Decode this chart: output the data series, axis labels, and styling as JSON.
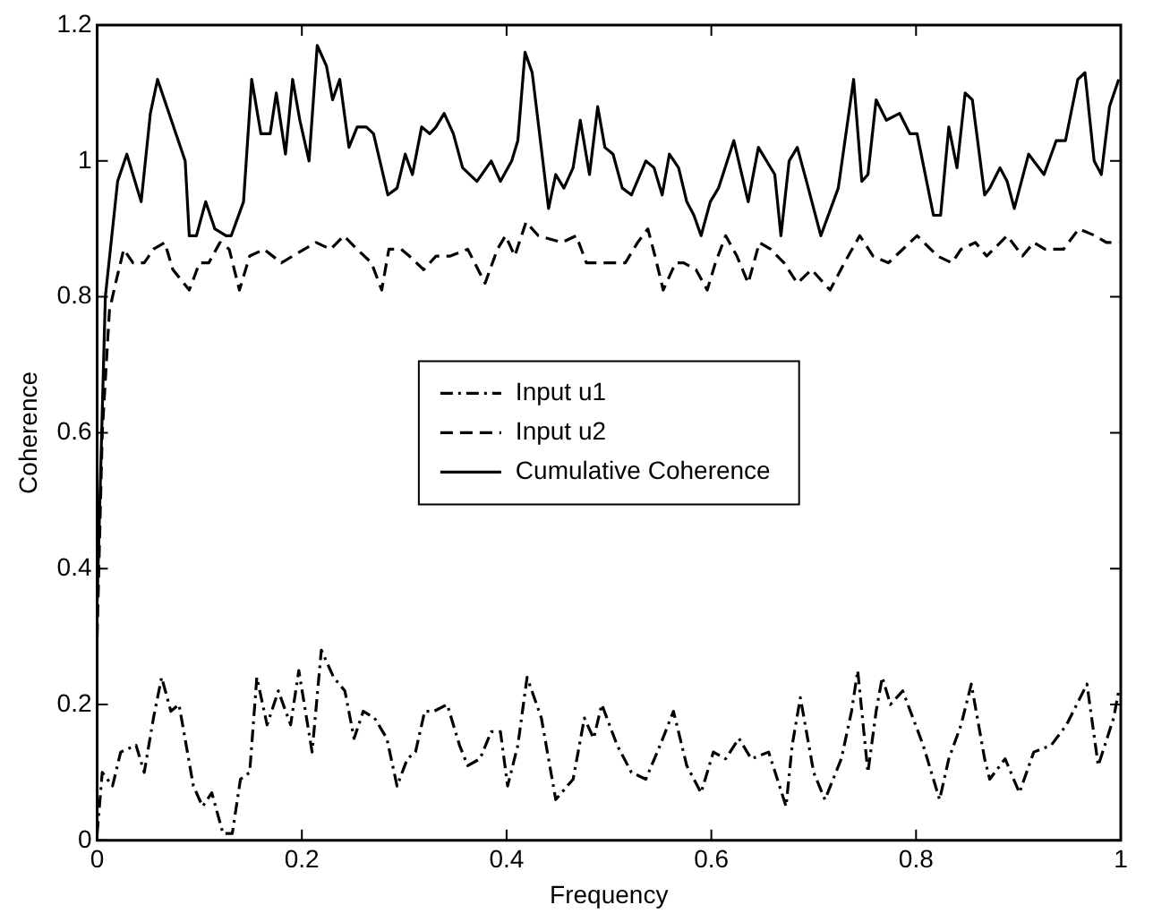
{
  "chart_data": {
    "type": "line",
    "xlabel": "Frequency",
    "ylabel": "Coherence",
    "xlim": [
      0,
      1
    ],
    "xticks": [
      0,
      0.2,
      0.4,
      0.6,
      0.8,
      1
    ],
    "ylim": [
      0,
      1.2
    ],
    "yticks": [
      0,
      0.2,
      0.4,
      0.6,
      0.8,
      1,
      1.2
    ],
    "grid": false,
    "legend": "center",
    "marker": "none",
    "series": [
      {
        "name": "Input u1",
        "color": "#000000",
        "line_style": "dashdot",
        "x": [
          0,
          0.005,
          0.015,
          0.023,
          0.038,
          0.046,
          0.055,
          0.063,
          0.072,
          0.08,
          0.094,
          0.103,
          0.112,
          0.123,
          0.132,
          0.14,
          0.149,
          0.156,
          0.166,
          0.177,
          0.189,
          0.197,
          0.21,
          0.219,
          0.231,
          0.242,
          0.251,
          0.26,
          0.271,
          0.283,
          0.293,
          0.303,
          0.311,
          0.32,
          0.329,
          0.342,
          0.354,
          0.362,
          0.374,
          0.385,
          0.394,
          0.401,
          0.411,
          0.42,
          0.434,
          0.448,
          0.465,
          0.476,
          0.485,
          0.493,
          0.508,
          0.522,
          0.536,
          0.55,
          0.563,
          0.576,
          0.59,
          0.602,
          0.614,
          0.627,
          0.639,
          0.656,
          0.673,
          0.679,
          0.687,
          0.7,
          0.711,
          0.727,
          0.737,
          0.743,
          0.753,
          0.761,
          0.767,
          0.775,
          0.787,
          0.807,
          0.823,
          0.832,
          0.844,
          0.854,
          0.867,
          0.872,
          0.887,
          0.901,
          0.915,
          0.932,
          0.947,
          0.967,
          0.978,
          0.993,
          0.998
        ],
        "values": [
          0.01,
          0.1,
          0.08,
          0.13,
          0.14,
          0.1,
          0.18,
          0.24,
          0.19,
          0.2,
          0.08,
          0.05,
          0.07,
          0.01,
          0.01,
          0.09,
          0.1,
          0.24,
          0.17,
          0.22,
          0.17,
          0.25,
          0.13,
          0.28,
          0.24,
          0.22,
          0.15,
          0.19,
          0.18,
          0.15,
          0.08,
          0.12,
          0.13,
          0.19,
          0.19,
          0.2,
          0.14,
          0.11,
          0.12,
          0.16,
          0.16,
          0.08,
          0.14,
          0.24,
          0.18,
          0.06,
          0.09,
          0.18,
          0.15,
          0.2,
          0.14,
          0.1,
          0.09,
          0.14,
          0.19,
          0.11,
          0.07,
          0.13,
          0.12,
          0.15,
          0.12,
          0.13,
          0.05,
          0.14,
          0.21,
          0.1,
          0.06,
          0.12,
          0.19,
          0.25,
          0.1,
          0.19,
          0.24,
          0.2,
          0.22,
          0.14,
          0.06,
          0.12,
          0.17,
          0.23,
          0.12,
          0.09,
          0.12,
          0.07,
          0.13,
          0.14,
          0.17,
          0.23,
          0.11,
          0.18,
          0.22
        ]
      },
      {
        "name": "Input u2",
        "color": "#000000",
        "line_style": "dashed",
        "x": [
          0,
          0.005,
          0.012,
          0.018,
          0.026,
          0.035,
          0.046,
          0.055,
          0.066,
          0.074,
          0.09,
          0.1,
          0.109,
          0.12,
          0.129,
          0.139,
          0.149,
          0.163,
          0.18,
          0.191,
          0.214,
          0.228,
          0.241,
          0.254,
          0.268,
          0.278,
          0.285,
          0.297,
          0.305,
          0.319,
          0.331,
          0.345,
          0.362,
          0.379,
          0.391,
          0.399,
          0.408,
          0.419,
          0.431,
          0.454,
          0.468,
          0.478,
          0.488,
          0.499,
          0.516,
          0.528,
          0.538,
          0.545,
          0.553,
          0.565,
          0.573,
          0.585,
          0.596,
          0.604,
          0.614,
          0.625,
          0.636,
          0.647,
          0.658,
          0.671,
          0.684,
          0.698,
          0.716,
          0.73,
          0.745,
          0.758,
          0.773,
          0.787,
          0.801,
          0.821,
          0.835,
          0.844,
          0.858,
          0.869,
          0.889,
          0.904,
          0.915,
          0.926,
          0.944,
          0.959,
          0.975,
          0.986,
          0.998
        ],
        "values": [
          0.3,
          0.6,
          0.78,
          0.82,
          0.87,
          0.85,
          0.85,
          0.87,
          0.88,
          0.84,
          0.81,
          0.85,
          0.85,
          0.88,
          0.87,
          0.81,
          0.86,
          0.87,
          0.85,
          0.86,
          0.88,
          0.87,
          0.89,
          0.87,
          0.85,
          0.81,
          0.87,
          0.87,
          0.86,
          0.84,
          0.86,
          0.86,
          0.87,
          0.82,
          0.87,
          0.89,
          0.86,
          0.91,
          0.89,
          0.88,
          0.89,
          0.85,
          0.85,
          0.85,
          0.85,
          0.88,
          0.9,
          0.86,
          0.81,
          0.85,
          0.85,
          0.84,
          0.81,
          0.85,
          0.89,
          0.86,
          0.82,
          0.88,
          0.87,
          0.85,
          0.82,
          0.84,
          0.81,
          0.85,
          0.89,
          0.86,
          0.85,
          0.87,
          0.89,
          0.86,
          0.85,
          0.87,
          0.88,
          0.86,
          0.89,
          0.86,
          0.88,
          0.87,
          0.87,
          0.9,
          0.89,
          0.88,
          0.88
        ]
      },
      {
        "name": "Cumulative Coherence",
        "color": "#000000",
        "line_style": "solid",
        "x": [
          0,
          0.008,
          0.02,
          0.029,
          0.043,
          0.052,
          0.059,
          0.077,
          0.086,
          0.09,
          0.097,
          0.106,
          0.115,
          0.126,
          0.131,
          0.143,
          0.151,
          0.16,
          0.169,
          0.175,
          0.184,
          0.191,
          0.198,
          0.207,
          0.215,
          0.224,
          0.23,
          0.237,
          0.246,
          0.254,
          0.263,
          0.27,
          0.284,
          0.293,
          0.301,
          0.308,
          0.317,
          0.325,
          0.331,
          0.339,
          0.348,
          0.357,
          0.371,
          0.385,
          0.394,
          0.405,
          0.411,
          0.418,
          0.425,
          0.441,
          0.448,
          0.456,
          0.465,
          0.472,
          0.481,
          0.489,
          0.496,
          0.504,
          0.513,
          0.522,
          0.536,
          0.544,
          0.552,
          0.559,
          0.568,
          0.576,
          0.583,
          0.59,
          0.599,
          0.607,
          0.622,
          0.636,
          0.646,
          0.662,
          0.668,
          0.676,
          0.684,
          0.693,
          0.707,
          0.724,
          0.739,
          0.747,
          0.753,
          0.761,
          0.771,
          0.784,
          0.794,
          0.801,
          0.817,
          0.824,
          0.832,
          0.84,
          0.848,
          0.855,
          0.867,
          0.872,
          0.882,
          0.889,
          0.896,
          0.91,
          0.925,
          0.937,
          0.946,
          0.958,
          0.965,
          0.974,
          0.981,
          0.989,
          0.998
        ],
        "values": [
          0.35,
          0.8,
          0.97,
          1.01,
          0.94,
          1.07,
          1.12,
          1.04,
          1.0,
          0.89,
          0.89,
          0.94,
          0.9,
          0.89,
          0.89,
          0.94,
          1.12,
          1.04,
          1.04,
          1.1,
          1.01,
          1.12,
          1.06,
          1.0,
          1.17,
          1.14,
          1.09,
          1.12,
          1.02,
          1.05,
          1.05,
          1.04,
          0.95,
          0.96,
          1.01,
          0.98,
          1.05,
          1.04,
          1.05,
          1.07,
          1.04,
          0.99,
          0.97,
          1.0,
          0.97,
          1.0,
          1.03,
          1.16,
          1.13,
          0.93,
          0.98,
          0.96,
          0.99,
          1.06,
          0.98,
          1.08,
          1.02,
          1.01,
          0.96,
          0.95,
          1.0,
          0.99,
          0.95,
          1.01,
          0.99,
          0.94,
          0.92,
          0.89,
          0.94,
          0.96,
          1.03,
          0.94,
          1.02,
          0.98,
          0.89,
          1.0,
          1.02,
          0.97,
          0.89,
          0.96,
          1.12,
          0.97,
          0.98,
          1.09,
          1.06,
          1.07,
          1.04,
          1.04,
          0.92,
          0.92,
          1.05,
          0.99,
          1.1,
          1.09,
          0.95,
          0.96,
          0.99,
          0.97,
          0.93,
          1.01,
          0.98,
          1.03,
          1.03,
          1.12,
          1.13,
          1.0,
          0.98,
          1.08,
          1.12
        ]
      }
    ]
  }
}
